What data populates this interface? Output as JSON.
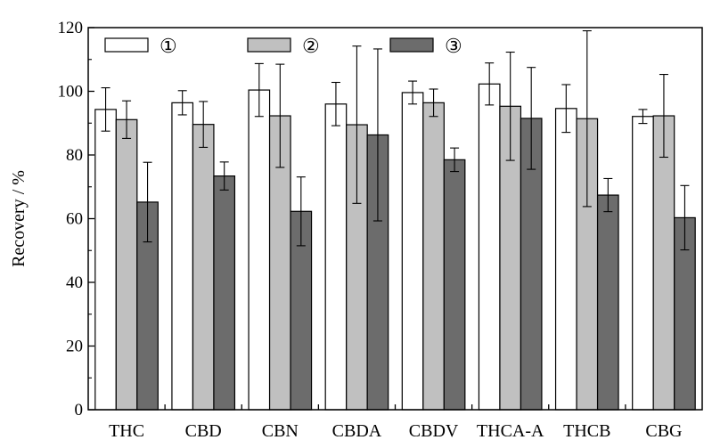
{
  "chart_data": {
    "type": "bar",
    "title": "",
    "xlabel": "",
    "ylabel": "Recovery / %",
    "ylim": [
      0,
      120
    ],
    "yticks": [
      0,
      20,
      40,
      60,
      80,
      100,
      120
    ],
    "legend_position": "top-left",
    "categories": [
      "THC",
      "CBD",
      "CBN",
      "CBDA",
      "CBDV",
      "THCA-A",
      "THCB",
      "CBG"
    ],
    "series": [
      {
        "name": "①",
        "color": "#ffffff",
        "values": [
          94.3,
          96.4,
          100.4,
          96.0,
          99.6,
          102.3,
          94.6,
          92.1
        ],
        "errors": [
          6.8,
          3.8,
          8.3,
          6.8,
          3.6,
          6.6,
          7.5,
          2.2
        ]
      },
      {
        "name": "②",
        "color": "#c0c0c0",
        "values": [
          91.1,
          89.6,
          92.3,
          89.5,
          96.4,
          95.3,
          91.4,
          92.3
        ],
        "errors": [
          5.9,
          7.2,
          16.2,
          24.7,
          4.3,
          17.0,
          27.6,
          13.0
        ]
      },
      {
        "name": "③",
        "color": "#6c6c6c",
        "values": [
          65.2,
          73.4,
          62.3,
          86.3,
          78.5,
          91.5,
          67.4,
          60.3
        ],
        "errors": [
          12.5,
          4.4,
          10.8,
          27.0,
          3.7,
          16.0,
          5.2,
          10.1
        ]
      }
    ]
  }
}
